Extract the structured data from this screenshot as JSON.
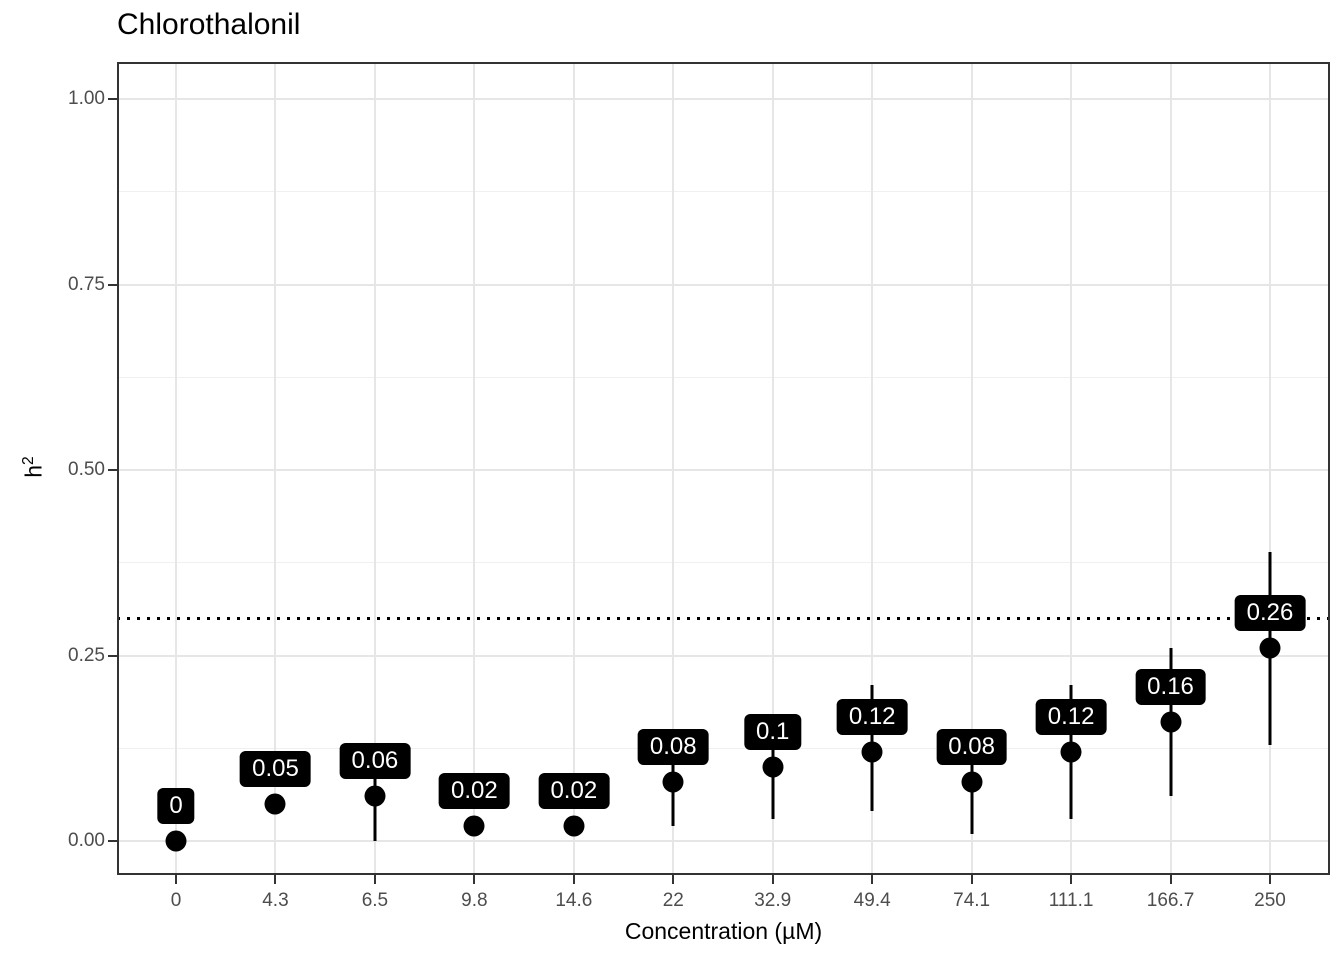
{
  "chart_data": {
    "type": "scatter",
    "title": "Chlorothalonil",
    "xlabel": "Concentration (µM)",
    "ylabel": "h²",
    "ylabel_base": "h",
    "ylabel_sup": "2",
    "x_categories": [
      "0",
      "4.3",
      "6.5",
      "9.8",
      "14.6",
      "22",
      "32.9",
      "49.4",
      "74.1",
      "111.1",
      "166.7",
      "250"
    ],
    "y_major_ticks": [
      0,
      0.25,
      0.5,
      0.75,
      1.0
    ],
    "y_tick_labels": [
      "0.00",
      "0.25",
      "0.50",
      "0.75",
      "1.00"
    ],
    "y_minor_ticks": [
      0.125,
      0.375,
      0.625,
      0.875
    ],
    "ylim": [
      0,
      1
    ],
    "grid": true,
    "legend": "none",
    "reference_line_y": 0.3,
    "reference_line_style": "dotted",
    "points": [
      {
        "x": "0",
        "value": 0.0,
        "label": "0",
        "lo": 0.0,
        "hi": 0.0
      },
      {
        "x": "4.3",
        "value": 0.05,
        "label": "0.05",
        "lo": 0.04,
        "hi": 0.06
      },
      {
        "x": "6.5",
        "value": 0.06,
        "label": "0.06",
        "lo": 0.0,
        "hi": 0.12
      },
      {
        "x": "9.8",
        "value": 0.02,
        "label": "0.02",
        "lo": 0.01,
        "hi": 0.03
      },
      {
        "x": "14.6",
        "value": 0.02,
        "label": "0.02",
        "lo": 0.01,
        "hi": 0.03
      },
      {
        "x": "22",
        "value": 0.08,
        "label": "0.08",
        "lo": 0.02,
        "hi": 0.14
      },
      {
        "x": "32.9",
        "value": 0.1,
        "label": "0.1",
        "lo": 0.03,
        "hi": 0.16
      },
      {
        "x": "49.4",
        "value": 0.12,
        "label": "0.12",
        "lo": 0.04,
        "hi": 0.21
      },
      {
        "x": "74.1",
        "value": 0.08,
        "label": "0.08",
        "lo": 0.01,
        "hi": 0.14
      },
      {
        "x": "111.1",
        "value": 0.12,
        "label": "0.12",
        "lo": 0.03,
        "hi": 0.21
      },
      {
        "x": "166.7",
        "value": 0.16,
        "label": "0.16",
        "lo": 0.06,
        "hi": 0.26
      },
      {
        "x": "250",
        "value": 0.26,
        "label": "0.26",
        "lo": 0.13,
        "hi": 0.39
      }
    ],
    "colors": {
      "point": "#000000",
      "errorbar": "#000000",
      "label_bg": "#000000",
      "label_text": "#ffffff",
      "grid_major": "#e6e6e6",
      "grid_minor": "#f0f0f0",
      "panel_border": "#333333",
      "axis_text": "#4d4d4d",
      "axis_title": "#000000",
      "reference_line": "#000000",
      "background": "#ffffff"
    }
  }
}
